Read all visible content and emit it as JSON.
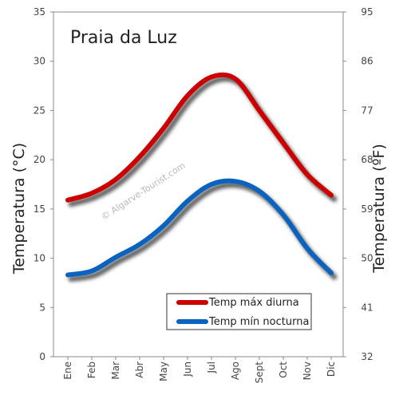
{
  "chart_data": {
    "type": "line",
    "title": "Praia da Luz",
    "watermark": "© Algarve-Tourist.com",
    "categories": [
      "Ene",
      "Feb",
      "Mar",
      "Abr",
      "May",
      "Jun",
      "Jul",
      "Ago",
      "Sept",
      "Oct",
      "Nov",
      "Dic"
    ],
    "series": [
      {
        "name": "Temp máx diurna",
        "color": "#cc0000",
        "values": [
          15.9,
          16.6,
          18.0,
          20.3,
          23.2,
          26.5,
          28.4,
          28.2,
          25.0,
          21.7,
          18.5,
          16.4
        ]
      },
      {
        "name": "Temp mín nocturna",
        "color": "#0a64bf",
        "values": [
          8.3,
          8.7,
          10.1,
          11.4,
          13.3,
          15.8,
          17.5,
          17.8,
          16.8,
          14.4,
          11.0,
          8.5
        ]
      }
    ],
    "ylabel": "Temperatura (°C)",
    "y2label": "Temperatura (ºF)",
    "ylim": [
      0,
      35
    ],
    "yticks": [
      "0",
      "5",
      "10",
      "15",
      "20",
      "25",
      "30",
      "35"
    ],
    "y2ticks": [
      "32",
      "41",
      "50",
      "59",
      "68",
      "77",
      "86",
      "95"
    ],
    "grid": false,
    "legend_position": "bottom-right"
  }
}
